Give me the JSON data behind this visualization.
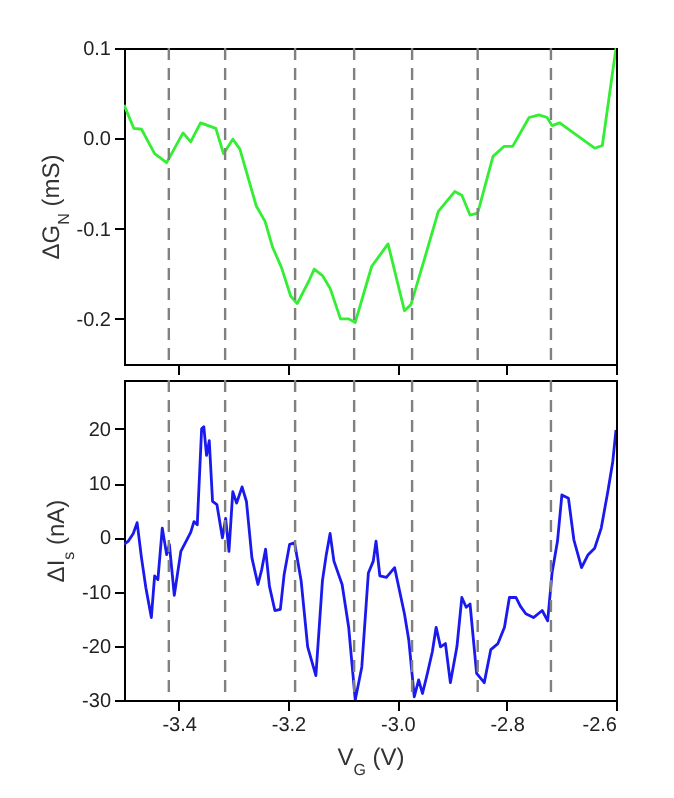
{
  "chart_data": [
    {
      "type": "line",
      "ylabel": "ΔG$_{N}$ (mS)",
      "tick_labels": "y",
      "x": [
        -3.5,
        -3.482,
        -3.468,
        -3.444,
        -3.422,
        -3.392,
        -3.378,
        -3.36,
        -3.332,
        -3.318,
        -3.301,
        -3.288,
        -3.258,
        -3.242,
        -3.228,
        -3.212,
        -3.195,
        -3.183,
        -3.161,
        -3.152,
        -3.137,
        -3.123,
        -3.104,
        -3.089,
        -3.077,
        -3.047,
        -3.017,
        -2.987,
        -2.975,
        -2.951,
        -2.925,
        -2.895,
        -2.882,
        -2.867,
        -2.853,
        -2.825,
        -2.805,
        -2.789,
        -2.759,
        -2.741,
        -2.726,
        -2.717,
        -2.703,
        -2.639,
        -2.625,
        -2.6
      ],
      "series": [
        {
          "color": "#33ee33",
          "values": [
            0.037,
            0.011,
            0.01,
            -0.017,
            -0.027,
            0.006,
            -0.004,
            0.017,
            0.011,
            -0.017,
            -0.001,
            -0.012,
            -0.075,
            -0.092,
            -0.121,
            -0.143,
            -0.175,
            -0.183,
            -0.157,
            -0.145,
            -0.152,
            -0.166,
            -0.2,
            -0.2,
            -0.204,
            -0.142,
            -0.117,
            -0.191,
            -0.184,
            -0.135,
            -0.081,
            -0.059,
            -0.063,
            -0.085,
            -0.083,
            -0.02,
            -0.009,
            -0.009,
            0.023,
            0.026,
            0.023,
            0.014,
            0.017,
            -0.011,
            -0.008,
            0.1
          ]
        }
      ],
      "xlim": [
        -3.5,
        -2.6
      ],
      "xticks": [
        -3.4,
        -3.2,
        -3.0,
        -2.8,
        -2.6
      ],
      "ylim": [
        -0.25,
        0.1
      ],
      "yticks": [
        {
          "value": -0.2,
          "label": "-0.2"
        },
        {
          "value": -0.1,
          "label": "-0.1"
        },
        {
          "value": 0,
          "label": "0.0"
        },
        {
          "value": 0.1,
          "label": "0.1"
        }
      ],
      "ref_lines": [
        {
          "axis": "x",
          "value": -3.418,
          "color": "#808080",
          "line_style": "dashed"
        },
        {
          "axis": "x",
          "value": -3.315,
          "color": "#808080",
          "line_style": "dashed"
        },
        {
          "axis": "x",
          "value": -3.187,
          "color": "#808080",
          "line_style": "dashed"
        },
        {
          "axis": "x",
          "value": -3.079,
          "color": "#808080",
          "line_style": "dashed"
        },
        {
          "axis": "x",
          "value": -2.973,
          "color": "#808080",
          "line_style": "dashed"
        },
        {
          "axis": "x",
          "value": -2.853,
          "color": "#808080",
          "line_style": "dashed"
        },
        {
          "axis": "x",
          "value": -2.719,
          "color": "#808080",
          "line_style": "dashed"
        }
      ]
    },
    {
      "type": "line",
      "xlabel": "V$_{G}$ (V)",
      "ylabel": "ΔI$_{s}$ (nA)",
      "x": [
        -3.5,
        -3.492,
        -3.483,
        -3.476,
        -3.468,
        -3.46,
        -3.45,
        -3.444,
        -3.438,
        -3.43,
        -3.422,
        -3.417,
        -3.408,
        -3.396,
        -3.378,
        -3.372,
        -3.366,
        -3.358,
        -3.354,
        -3.349,
        -3.344,
        -3.338,
        -3.33,
        -3.32,
        -3.314,
        -3.308,
        -3.301,
        -3.294,
        -3.284,
        -3.276,
        -3.266,
        -3.255,
        -3.248,
        -3.241,
        -3.234,
        -3.224,
        -3.214,
        -3.207,
        -3.197,
        -3.188,
        -3.176,
        -3.164,
        -3.149,
        -3.137,
        -3.13,
        -3.123,
        -3.116,
        -3.101,
        -3.089,
        -3.077,
        -3.065,
        -3.053,
        -3.044,
        -3.039,
        -3.032,
        -3.02,
        -3.005,
        -2.987,
        -2.979,
        -2.969,
        -2.961,
        -2.954,
        -2.945,
        -2.936,
        -2.929,
        -2.921,
        -2.912,
        -2.903,
        -2.891,
        -2.882,
        -2.874,
        -2.867,
        -2.855,
        -2.841,
        -2.829,
        -2.816,
        -2.804,
        -2.795,
        -2.783,
        -2.775,
        -2.765,
        -2.751,
        -2.735,
        -2.725,
        -2.717,
        -2.707,
        -2.699,
        -2.687,
        -2.677,
        -2.663,
        -2.651,
        -2.639,
        -2.627,
        -2.615,
        -2.606,
        -2.6
      ],
      "series": [
        {
          "color": "#1a1aee",
          "values": [
            -1.3,
            -0.7,
            0.7,
            2.7,
            -3.8,
            -9.3,
            -14.8,
            -7.1,
            -7.8,
            1.7,
            -3.2,
            -1.3,
            -10.7,
            -2.6,
            0.9,
            2.9,
            2.3,
            20,
            20.4,
            15.1,
            17.8,
            6.6,
            6,
            -0.1,
            3.5,
            -2.6,
            8.4,
            6.3,
            9.3,
            6.6,
            -3.8,
            -8.7,
            -5.9,
            -2.2,
            -9,
            -13.5,
            -13.3,
            -6.8,
            -1.3,
            -1,
            -8,
            -20.2,
            -25.5,
            -8,
            -3.2,
            0.7,
            -4.4,
            -8.7,
            -16.6,
            -30,
            -23.9,
            -6.6,
            -4.4,
            -0.7,
            -7.1,
            -7.4,
            -5.6,
            -14.1,
            -19,
            -29.4,
            -26.3,
            -28.8,
            -25.1,
            -21.1,
            -16.6,
            -20.2,
            -19.6,
            -26.8,
            -20.2,
            -11.1,
            -12.9,
            -12.3,
            -25.1,
            -26.8,
            -20.7,
            -19.6,
            -16.6,
            -11.1,
            -11.1,
            -12.7,
            -14.1,
            -14.8,
            -13.5,
            -15.4,
            -6.6,
            -0.7,
            7.8,
            7.2,
            -0.5,
            -5.6,
            -3.2,
            -2,
            1.7,
            8.4,
            13.9,
            19.8
          ]
        }
      ],
      "xlim": [
        -3.5,
        -2.6
      ],
      "xticks": [
        {
          "value": -3.4,
          "label": "-3.4"
        },
        {
          "value": -3.2,
          "label": "-3.2"
        },
        {
          "value": -3.0,
          "label": "-3.0"
        },
        {
          "value": -2.8,
          "label": "-2.8"
        },
        {
          "value": -2.6,
          "label": "-2.6"
        }
      ],
      "ylim": [
        -30,
        29
      ],
      "yticks": [
        -30,
        -20,
        -10,
        0,
        10,
        20
      ],
      "ref_lines": [
        {
          "axis": "x",
          "value": -3.418,
          "color": "#808080",
          "line_style": "dashed"
        },
        {
          "axis": "x",
          "value": -3.315,
          "color": "#808080",
          "line_style": "dashed"
        },
        {
          "axis": "x",
          "value": -3.187,
          "color": "#808080",
          "line_style": "dashed"
        },
        {
          "axis": "x",
          "value": -3.079,
          "color": "#808080",
          "line_style": "dashed"
        },
        {
          "axis": "x",
          "value": -2.973,
          "color": "#808080",
          "line_style": "dashed"
        },
        {
          "axis": "x",
          "value": -2.853,
          "color": "#808080",
          "line_style": "dashed"
        },
        {
          "axis": "x",
          "value": -2.719,
          "color": "#808080",
          "line_style": "dashed"
        }
      ]
    }
  ]
}
